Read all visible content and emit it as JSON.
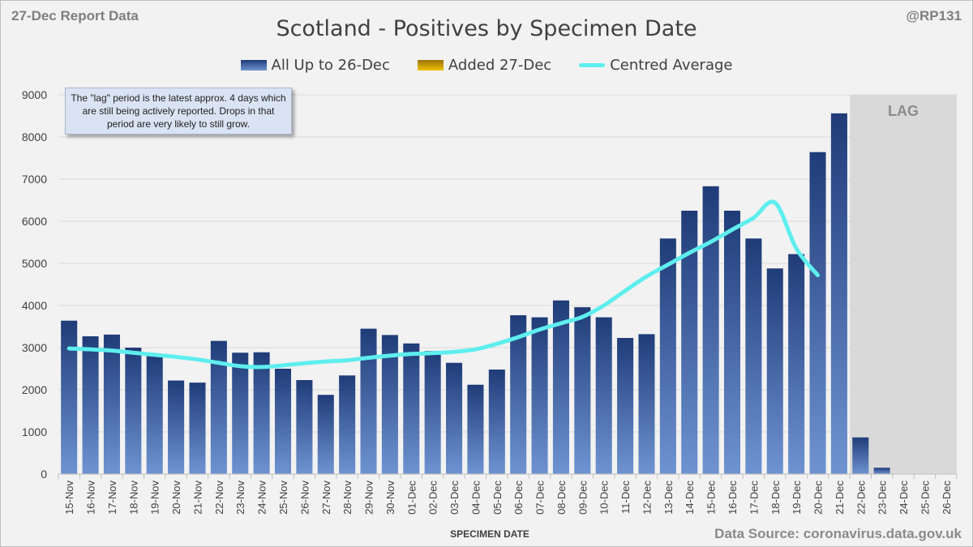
{
  "header": {
    "report_date": "27-Dec Report Data",
    "handle": "@RP131"
  },
  "footer": {
    "source": "Data Source: coronavirus.data.gov.uk"
  },
  "annotation": {
    "text": "The \"lag\" period is the latest approx. 4 days which are still being actively reported. Drops in that period are very likely to still grow."
  },
  "colors": {
    "bar_top": "#1f3c78",
    "bar_bottom": "#6f93d1",
    "added_top": "#9a7400",
    "added_bottom": "#f2c200",
    "average_line": "#5eeeee",
    "lag_shade": "#d9d9d9",
    "gridline": "#d9d9d9"
  },
  "chart_data": {
    "type": "bar",
    "title": "Scotland - Positives by Specimen Date",
    "xlabel": "SPECIMEN DATE",
    "ylabel": "",
    "ylim": [
      0,
      9000
    ],
    "yticks": [
      0,
      1000,
      2000,
      3000,
      4000,
      5000,
      6000,
      7000,
      8000,
      9000
    ],
    "grid": true,
    "legend_position": "top-center",
    "categories": [
      "15-Nov",
      "16-Nov",
      "17-Nov",
      "18-Nov",
      "19-Nov",
      "20-Nov",
      "21-Nov",
      "22-Nov",
      "23-Nov",
      "24-Nov",
      "25-Nov",
      "26-Nov",
      "27-Nov",
      "28-Nov",
      "29-Nov",
      "30-Nov",
      "01-Dec",
      "02-Dec",
      "03-Dec",
      "04-Dec",
      "05-Dec",
      "06-Dec",
      "07-Dec",
      "08-Dec",
      "09-Dec",
      "10-Dec",
      "11-Dec",
      "12-Dec",
      "13-Dec",
      "14-Dec",
      "15-Dec",
      "16-Dec",
      "17-Dec",
      "18-Dec",
      "19-Dec",
      "20-Dec",
      "21-Dec",
      "22-Dec",
      "23-Dec",
      "24-Dec",
      "25-Dec",
      "26-Dec"
    ],
    "series": [
      {
        "name": "All Up to 26-Dec",
        "kind": "bar",
        "values": [
          3640,
          3270,
          3310,
          3000,
          2800,
          2220,
          2170,
          3160,
          2880,
          2890,
          2500,
          2230,
          1880,
          2340,
          3450,
          3300,
          3100,
          2920,
          2640,
          2120,
          2480,
          3770,
          3720,
          4120,
          3960,
          3720,
          3230,
          3320,
          5590,
          6250,
          6830,
          6250,
          5590,
          4880,
          5220,
          7640,
          8560,
          870,
          150,
          0,
          0,
          0
        ]
      },
      {
        "name": "Added 27-Dec",
        "kind": "bar",
        "values": [
          0,
          0,
          0,
          0,
          0,
          0,
          0,
          0,
          0,
          0,
          0,
          0,
          0,
          0,
          0,
          0,
          0,
          0,
          0,
          0,
          0,
          0,
          0,
          0,
          0,
          0,
          0,
          0,
          0,
          0,
          0,
          0,
          0,
          0,
          0,
          0,
          0,
          0,
          0,
          0,
          0,
          0
        ]
      },
      {
        "name": "Centred Average",
        "kind": "line",
        "values": [
          2980,
          2960,
          2930,
          2880,
          2830,
          2780,
          2720,
          2640,
          2560,
          2540,
          2580,
          2630,
          2670,
          2700,
          2760,
          2810,
          2850,
          2870,
          2900,
          2960,
          3090,
          3250,
          3430,
          3580,
          3730,
          4000,
          4350,
          4690,
          4970,
          5250,
          5510,
          5800,
          6080,
          6440,
          5350,
          4720,
          null,
          null,
          null,
          null,
          null,
          null
        ]
      }
    ],
    "lag_region": {
      "label": "LAG",
      "from": "22-Dec",
      "to": "26-Dec"
    }
  }
}
